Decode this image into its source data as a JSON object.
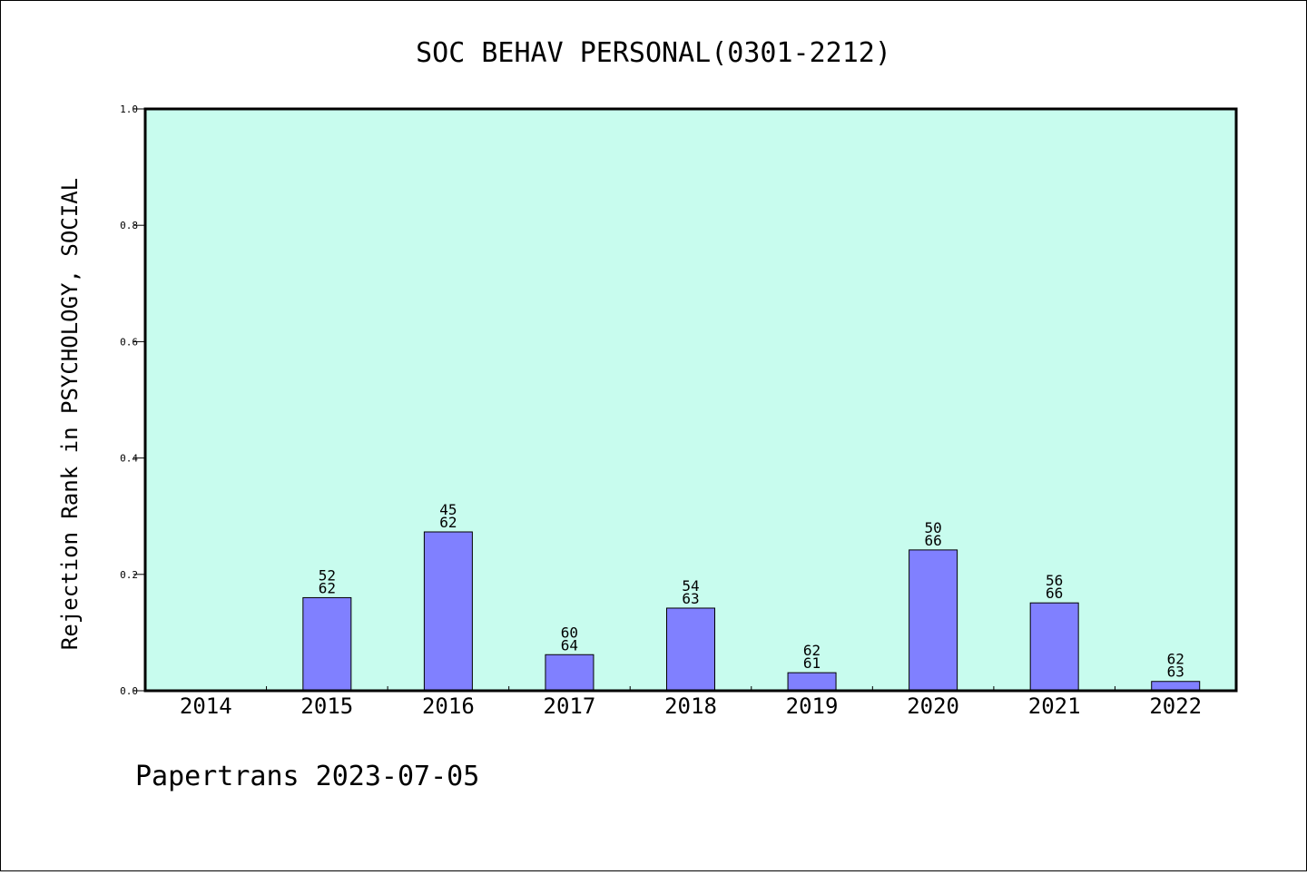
{
  "chart_data": {
    "type": "bar",
    "title": "SOC BEHAV PERSONAL(0301-2212)",
    "xlabel": "",
    "ylabel": "Rejection Rank in PSYCHOLOGY, SOCIAL",
    "categories": [
      "2014",
      "2015",
      "2016",
      "2017",
      "2018",
      "2019",
      "2020",
      "2021",
      "2022"
    ],
    "values": [
      0,
      0.16,
      0.273,
      0.062,
      0.142,
      0.031,
      0.242,
      0.151,
      0.016
    ],
    "bar_labels": [
      [
        "",
        ""
      ],
      [
        "52",
        "62"
      ],
      [
        "45",
        "62"
      ],
      [
        "60",
        "64"
      ],
      [
        "54",
        "63"
      ],
      [
        "62",
        "61"
      ],
      [
        "50",
        "66"
      ],
      [
        "56",
        "66"
      ],
      [
        "62",
        "63"
      ]
    ],
    "ylim": [
      0,
      1.0
    ],
    "yticks": [
      "0.0",
      "0.2",
      "0.4",
      "0.6",
      "0.8",
      "1.0"
    ],
    "grid": false,
    "colors": {
      "plot_background": "#c8fcee",
      "bar_fill": "#8080ff",
      "bar_stroke": "#000000"
    }
  },
  "footer": "Papertrans 2023-07-05"
}
